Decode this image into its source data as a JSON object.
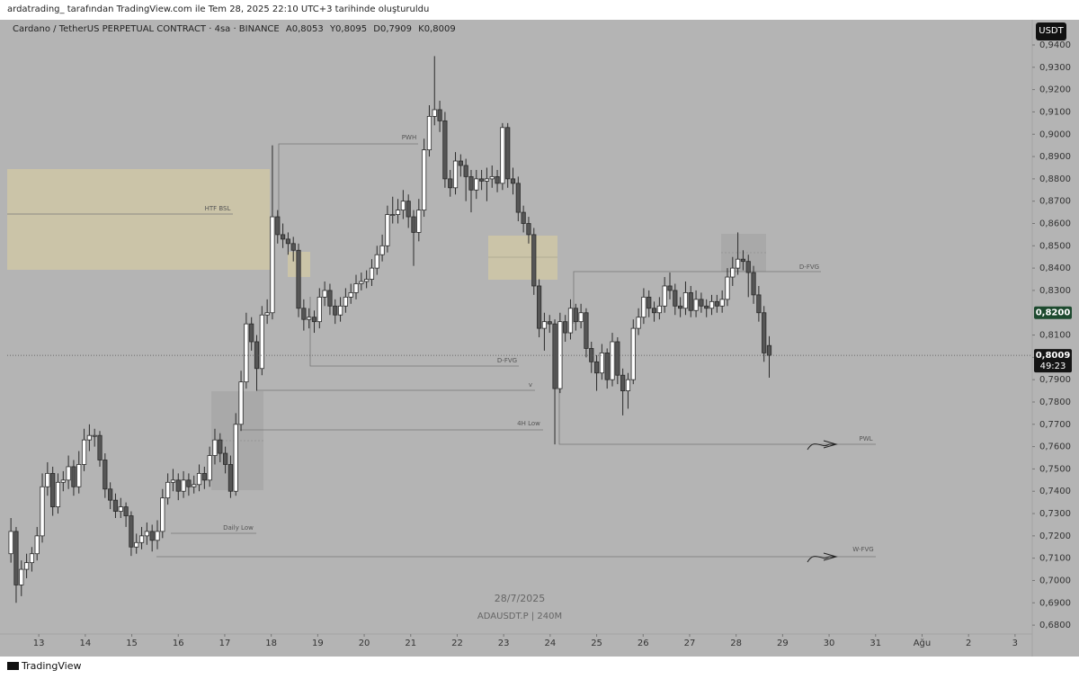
{
  "header": {
    "text": "ardatrading_  tarafından TradingView.com ile Tem 28, 2025 22:10 UTC+3 tarihinde oluşturuldu"
  },
  "chart_data": {
    "type": "candlestick",
    "title": "Cardano / TetherUS PERPETUAL CONTRACT · 4sa · BINANCE",
    "ohlc_labels": [
      "A0,8053",
      "Y0,8095",
      "D0,7909",
      "K0,8009"
    ],
    "currency_button": "USDT",
    "watermark": [
      "28/7/2025",
      "ADAUSDT.P | 240M"
    ],
    "x": [
      12.4,
      12.5125,
      12.625,
      12.7375,
      12.85,
      12.9625,
      13.075,
      13.1875,
      13.3,
      13.4125,
      13.525,
      13.6375,
      13.75,
      13.8625,
      13.975,
      14.0875,
      14.2,
      14.3125,
      14.425,
      14.5375,
      14.65,
      14.7625,
      14.875,
      14.9875,
      15.1,
      15.2125,
      15.325,
      15.4375,
      15.55,
      15.6625,
      15.775,
      15.8875,
      16,
      16.1125,
      16.225,
      16.3375,
      16.45,
      16.5625,
      16.675,
      16.7875,
      16.9,
      17.0125,
      17.125,
      17.2375,
      17.35,
      17.4625,
      17.575,
      17.6875,
      17.8,
      17.9125,
      18.025,
      18.1375,
      18.25,
      18.3625,
      18.475,
      18.5875,
      18.7,
      18.8125,
      18.925,
      19.0375,
      19.15,
      19.2625,
      19.375,
      19.4875,
      19.6,
      19.7125,
      19.825,
      19.9375,
      20.05,
      20.1625,
      20.275,
      20.3875,
      20.5,
      20.6125,
      20.725,
      20.8375,
      20.95,
      21.0625,
      21.175,
      21.2875,
      21.4,
      21.5125,
      21.625,
      21.7375,
      21.85,
      21.9625,
      22.075,
      22.1875,
      22.3,
      22.4125,
      22.525,
      22.6375,
      22.75,
      22.8625,
      22.975,
      23.0875,
      23.2,
      23.3125,
      23.425,
      23.5375,
      23.65,
      23.7625,
      23.875,
      23.9875,
      24.1,
      24.2125,
      24.325,
      24.4375,
      24.55,
      24.6625,
      24.775,
      24.8875,
      25,
      25.1125,
      25.225,
      25.3375,
      25.45,
      25.5625,
      25.675,
      25.7875,
      25.9,
      26.0125,
      26.125,
      26.2375,
      26.35,
      26.4625,
      26.575,
      26.6875,
      26.8,
      26.9125,
      27.025,
      27.1375,
      27.25,
      27.3625,
      27.475,
      27.5875,
      27.7,
      27.8125,
      27.925,
      28.0375,
      28.15,
      28.2625,
      28.375,
      28.4875,
      28.6,
      28.7125
    ],
    "open": [
      0.712,
      0.722,
      0.698,
      0.705,
      0.708,
      0.712,
      0.72,
      0.742,
      0.748,
      0.733,
      0.744,
      0.745,
      0.751,
      0.742,
      0.752,
      0.763,
      0.765,
      0.765,
      0.754,
      0.741,
      0.736,
      0.731,
      0.733,
      0.729,
      0.715,
      0.717,
      0.72,
      0.722,
      0.718,
      0.722,
      0.737,
      0.744,
      0.745,
      0.74,
      0.745,
      0.742,
      0.743,
      0.748,
      0.745,
      0.756,
      0.763,
      0.757,
      0.752,
      0.74,
      0.77,
      0.789,
      0.815,
      0.807,
      0.795,
      0.819,
      0.82,
      0.863,
      0.855,
      0.853,
      0.851,
      0.848,
      0.822,
      0.817,
      0.818,
      0.816,
      0.827,
      0.83,
      0.823,
      0.819,
      0.823,
      0.827,
      0.829,
      0.833,
      0.834,
      0.835,
      0.84,
      0.846,
      0.85,
      0.864,
      0.864,
      0.866,
      0.87,
      0.863,
      0.856,
      0.866,
      0.893,
      0.908,
      0.911,
      0.906,
      0.88,
      0.876,
      0.888,
      0.886,
      0.881,
      0.875,
      0.88,
      0.879,
      0.88,
      0.881,
      0.878,
      0.903,
      0.88,
      0.878,
      0.865,
      0.86,
      0.855,
      0.832,
      0.813,
      0.816,
      0.815,
      0.786,
      0.816,
      0.811,
      0.822,
      0.816,
      0.82,
      0.804,
      0.798,
      0.793,
      0.802,
      0.79,
      0.807,
      0.792,
      0.785,
      0.79,
      0.813,
      0.818,
      0.827,
      0.822,
      0.82,
      0.823,
      0.832,
      0.83,
      0.823,
      0.822,
      0.829,
      0.821,
      0.826,
      0.823,
      0.822,
      0.825,
      0.823,
      0.826,
      0.836,
      0.84,
      0.844,
      0.843,
      0.838,
      0.828,
      0.82,
      0.8053
    ],
    "high": [
      0.728,
      0.724,
      0.709,
      0.712,
      0.715,
      0.724,
      0.748,
      0.753,
      0.751,
      0.748,
      0.749,
      0.756,
      0.754,
      0.758,
      0.768,
      0.77,
      0.768,
      0.767,
      0.757,
      0.744,
      0.739,
      0.737,
      0.735,
      0.731,
      0.721,
      0.724,
      0.726,
      0.725,
      0.727,
      0.741,
      0.748,
      0.75,
      0.748,
      0.749,
      0.748,
      0.747,
      0.752,
      0.751,
      0.76,
      0.768,
      0.766,
      0.76,
      0.756,
      0.775,
      0.794,
      0.82,
      0.818,
      0.81,
      0.823,
      0.826,
      0.895,
      0.866,
      0.86,
      0.856,
      0.854,
      0.851,
      0.826,
      0.822,
      0.821,
      0.831,
      0.834,
      0.833,
      0.826,
      0.827,
      0.831,
      0.833,
      0.837,
      0.838,
      0.839,
      0.844,
      0.85,
      0.855,
      0.868,
      0.872,
      0.871,
      0.875,
      0.873,
      0.866,
      0.871,
      0.898,
      0.913,
      0.935,
      0.915,
      0.91,
      0.884,
      0.892,
      0.891,
      0.889,
      0.884,
      0.884,
      0.884,
      0.885,
      0.886,
      0.884,
      0.905,
      0.905,
      0.885,
      0.881,
      0.868,
      0.863,
      0.858,
      0.835,
      0.82,
      0.819,
      0.817,
      0.82,
      0.819,
      0.826,
      0.824,
      0.824,
      0.822,
      0.807,
      0.801,
      0.806,
      0.804,
      0.811,
      0.809,
      0.795,
      0.793,
      0.817,
      0.822,
      0.831,
      0.83,
      0.825,
      0.827,
      0.836,
      0.838,
      0.833,
      0.827,
      0.834,
      0.832,
      0.83,
      0.829,
      0.826,
      0.828,
      0.828,
      0.83,
      0.84,
      0.845,
      0.856,
      0.848,
      0.846,
      0.841,
      0.832,
      0.823,
      0.8095
    ],
    "low": [
      0.708,
      0.69,
      0.693,
      0.701,
      0.704,
      0.709,
      0.717,
      0.738,
      0.729,
      0.73,
      0.74,
      0.741,
      0.738,
      0.739,
      0.749,
      0.758,
      0.76,
      0.751,
      0.737,
      0.732,
      0.728,
      0.728,
      0.724,
      0.711,
      0.712,
      0.714,
      0.716,
      0.713,
      0.714,
      0.719,
      0.734,
      0.74,
      0.736,
      0.737,
      0.738,
      0.739,
      0.74,
      0.741,
      0.742,
      0.752,
      0.753,
      0.748,
      0.737,
      0.738,
      0.767,
      0.786,
      0.803,
      0.785,
      0.792,
      0.815,
      0.817,
      0.851,
      0.849,
      0.846,
      0.843,
      0.818,
      0.812,
      0.813,
      0.811,
      0.813,
      0.823,
      0.819,
      0.815,
      0.816,
      0.82,
      0.824,
      0.826,
      0.83,
      0.831,
      0.832,
      0.837,
      0.843,
      0.847,
      0.86,
      0.86,
      0.862,
      0.858,
      0.841,
      0.852,
      0.863,
      0.89,
      0.904,
      0.901,
      0.876,
      0.872,
      0.873,
      0.881,
      0.87,
      0.865,
      0.871,
      0.875,
      0.87,
      0.876,
      0.874,
      0.875,
      0.876,
      0.873,
      0.861,
      0.856,
      0.851,
      0.828,
      0.809,
      0.803,
      0.811,
      0.761,
      0.784,
      0.807,
      0.808,
      0.812,
      0.813,
      0.8,
      0.793,
      0.785,
      0.79,
      0.786,
      0.787,
      0.788,
      0.774,
      0.777,
      0.788,
      0.81,
      0.815,
      0.818,
      0.816,
      0.817,
      0.82,
      0.826,
      0.819,
      0.818,
      0.819,
      0.818,
      0.818,
      0.82,
      0.818,
      0.819,
      0.82,
      0.82,
      0.823,
      0.832,
      0.837,
      0.839,
      0.827,
      0.824,
      0.816,
      0.798,
      0.7909
    ],
    "close": [
      0.722,
      0.698,
      0.705,
      0.708,
      0.712,
      0.72,
      0.742,
      0.748,
      0.733,
      0.744,
      0.745,
      0.751,
      0.742,
      0.752,
      0.763,
      0.765,
      0.765,
      0.754,
      0.741,
      0.736,
      0.731,
      0.733,
      0.729,
      0.715,
      0.717,
      0.72,
      0.722,
      0.718,
      0.722,
      0.737,
      0.744,
      0.745,
      0.74,
      0.745,
      0.742,
      0.743,
      0.748,
      0.745,
      0.756,
      0.763,
      0.757,
      0.752,
      0.74,
      0.77,
      0.789,
      0.815,
      0.807,
      0.795,
      0.819,
      0.82,
      0.863,
      0.855,
      0.853,
      0.851,
      0.848,
      0.822,
      0.817,
      0.818,
      0.816,
      0.827,
      0.83,
      0.823,
      0.819,
      0.823,
      0.827,
      0.829,
      0.833,
      0.834,
      0.835,
      0.84,
      0.846,
      0.85,
      0.864,
      0.864,
      0.866,
      0.87,
      0.863,
      0.856,
      0.866,
      0.893,
      0.908,
      0.911,
      0.906,
      0.88,
      0.876,
      0.888,
      0.886,
      0.881,
      0.875,
      0.88,
      0.879,
      0.88,
      0.881,
      0.878,
      0.903,
      0.88,
      0.878,
      0.865,
      0.86,
      0.855,
      0.832,
      0.813,
      0.816,
      0.815,
      0.786,
      0.816,
      0.811,
      0.822,
      0.816,
      0.82,
      0.804,
      0.798,
      0.793,
      0.802,
      0.79,
      0.807,
      0.792,
      0.785,
      0.79,
      0.813,
      0.818,
      0.827,
      0.822,
      0.82,
      0.823,
      0.832,
      0.83,
      0.823,
      0.822,
      0.829,
      0.821,
      0.826,
      0.823,
      0.822,
      0.825,
      0.823,
      0.826,
      0.836,
      0.84,
      0.844,
      0.843,
      0.838,
      0.828,
      0.82,
      0.802,
      0.8009
    ],
    "up_color": "#ffffff",
    "down_color": "#555555",
    "wick_color": "#2b2b2b",
    "xlim": [
      12.32,
      34.37
    ],
    "xticks": [
      13,
      14,
      15,
      16,
      17,
      18,
      19,
      20,
      21,
      22,
      23,
      24,
      25,
      26,
      27,
      28,
      29,
      30,
      31,
      {
        "value": 32,
        "label": "Ağu"
      },
      {
        "value": 33,
        "label": "2"
      },
      {
        "value": 34,
        "label": "3"
      }
    ],
    "ylim": [
      0.6748,
      0.9529
    ],
    "yticks": [
      {
        "value": 0.68,
        "label": "0,6800"
      },
      {
        "value": 0.69,
        "label": "0,6900"
      },
      {
        "value": 0.7,
        "label": "0,7000"
      },
      {
        "value": 0.71,
        "label": "0,7100"
      },
      {
        "value": 0.72,
        "label": "0,7200"
      },
      {
        "value": 0.73,
        "label": "0,7300"
      },
      {
        "value": 0.74,
        "label": "0,7400"
      },
      {
        "value": 0.75,
        "label": "0,7500"
      },
      {
        "value": 0.76,
        "label": "0,7600"
      },
      {
        "value": 0.77,
        "label": "0,7700"
      },
      {
        "value": 0.78,
        "label": "0,7800"
      },
      {
        "value": 0.79,
        "label": "0,7900"
      },
      {
        "value": 0.8,
        "label": "0,8000"
      },
      {
        "value": 0.81,
        "label": "0,8100"
      },
      {
        "value": 0.83,
        "label": "0,8300"
      },
      {
        "value": 0.84,
        "label": "0,8400"
      },
      {
        "value": 0.85,
        "label": "0,8500"
      },
      {
        "value": 0.86,
        "label": "0,8600"
      },
      {
        "value": 0.87,
        "label": "0,8700"
      },
      {
        "value": 0.88,
        "label": "0,8800"
      },
      {
        "value": 0.89,
        "label": "0,8900"
      },
      {
        "value": 0.9,
        "label": "0,9000"
      },
      {
        "value": 0.91,
        "label": "0,9100"
      },
      {
        "value": 0.92,
        "label": "0,9200"
      },
      {
        "value": 0.93,
        "label": "0,9300"
      },
      {
        "value": 0.94,
        "label": "0,9400"
      }
    ],
    "grid": false,
    "price_tags": [
      {
        "value": 0.82,
        "label": "0,8200",
        "color": "#1d4a2f"
      },
      {
        "value": 0.8009,
        "label": "0,8009",
        "sublabel": "49:23",
        "color": "#141414"
      }
    ],
    "annotations": [
      "PWH",
      "HTF BSL",
      "D-FVG",
      "v",
      "4H Low",
      "Daily Low",
      "D-FVG",
      "PWL",
      "W-FVG"
    ]
  },
  "footer": {
    "brand": "TradingView"
  }
}
